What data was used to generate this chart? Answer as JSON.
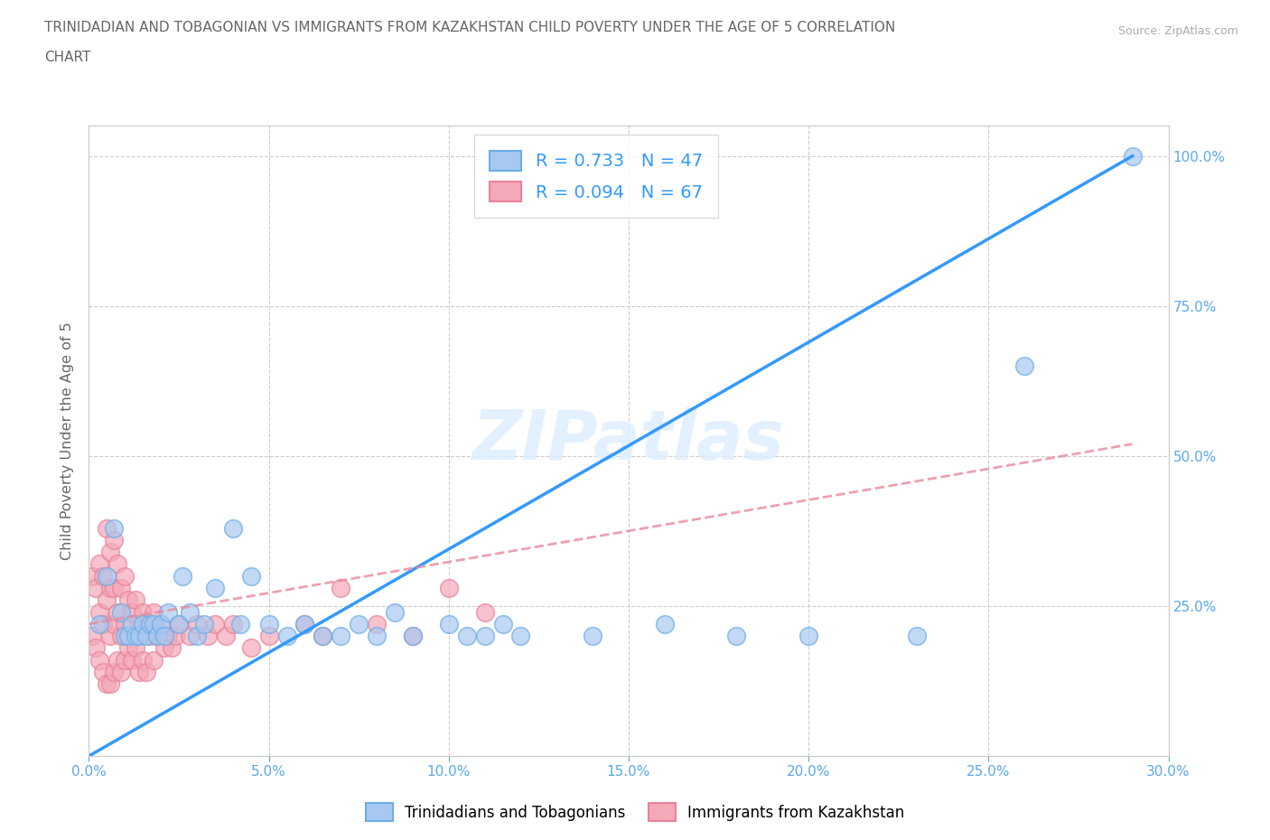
{
  "title_line1": "TRINIDADIAN AND TOBAGONIAN VS IMMIGRANTS FROM KAZAKHSTAN CHILD POVERTY UNDER THE AGE OF 5 CORRELATION",
  "title_line2": "CHART",
  "source": "Source: ZipAtlas.com",
  "ylabel": "Child Poverty Under the Age of 5",
  "xlim": [
    0.0,
    0.3
  ],
  "ylim": [
    0.0,
    1.05
  ],
  "xtick_labels": [
    "0.0%",
    "5.0%",
    "10.0%",
    "15.0%",
    "20.0%",
    "25.0%",
    "30.0%"
  ],
  "xtick_values": [
    0.0,
    0.05,
    0.1,
    0.15,
    0.2,
    0.25,
    0.3
  ],
  "ytick_labels": [
    "",
    "",
    "",
    "",
    ""
  ],
  "ytick_values": [
    0.0,
    0.25,
    0.5,
    0.75,
    1.0
  ],
  "right_ytick_labels": [
    "25.0%",
    "50.0%",
    "75.0%",
    "100.0%"
  ],
  "right_ytick_values": [
    0.25,
    0.5,
    0.75,
    1.0
  ],
  "R_blue": 0.733,
  "N_blue": 47,
  "R_pink": 0.094,
  "N_pink": 67,
  "blue_color": "#a8c8f0",
  "pink_color": "#f4a8b8",
  "blue_edge_color": "#6aaee8",
  "pink_edge_color": "#e8829a",
  "trend_line_blue_color": "#3399ff",
  "trend_line_pink_color": "#e88a9a",
  "watermark": "ZIPatlas",
  "legend_blue_label": "Trinidadians and Tobagonians",
  "legend_pink_label": "Immigrants from Kazakhstan",
  "blue_scatter_x": [
    0.003,
    0.005,
    0.007,
    0.009,
    0.01,
    0.011,
    0.012,
    0.013,
    0.014,
    0.015,
    0.016,
    0.017,
    0.018,
    0.019,
    0.02,
    0.021,
    0.022,
    0.025,
    0.026,
    0.028,
    0.03,
    0.032,
    0.035,
    0.04,
    0.042,
    0.045,
    0.05,
    0.055,
    0.06,
    0.065,
    0.07,
    0.075,
    0.08,
    0.085,
    0.09,
    0.1,
    0.105,
    0.11,
    0.115,
    0.12,
    0.14,
    0.16,
    0.18,
    0.2,
    0.23,
    0.26,
    0.29
  ],
  "blue_scatter_y": [
    0.22,
    0.3,
    0.38,
    0.24,
    0.2,
    0.2,
    0.22,
    0.2,
    0.2,
    0.22,
    0.2,
    0.22,
    0.22,
    0.2,
    0.22,
    0.2,
    0.24,
    0.22,
    0.3,
    0.24,
    0.2,
    0.22,
    0.28,
    0.38,
    0.22,
    0.3,
    0.22,
    0.2,
    0.22,
    0.2,
    0.2,
    0.22,
    0.2,
    0.24,
    0.2,
    0.22,
    0.2,
    0.2,
    0.22,
    0.2,
    0.2,
    0.22,
    0.2,
    0.2,
    0.2,
    0.65,
    1.0
  ],
  "pink_scatter_x": [
    0.001,
    0.001,
    0.002,
    0.002,
    0.003,
    0.003,
    0.003,
    0.004,
    0.004,
    0.004,
    0.005,
    0.005,
    0.005,
    0.006,
    0.006,
    0.006,
    0.006,
    0.007,
    0.007,
    0.007,
    0.007,
    0.008,
    0.008,
    0.008,
    0.009,
    0.009,
    0.009,
    0.01,
    0.01,
    0.01,
    0.011,
    0.011,
    0.012,
    0.012,
    0.013,
    0.013,
    0.014,
    0.014,
    0.015,
    0.015,
    0.016,
    0.016,
    0.017,
    0.018,
    0.018,
    0.019,
    0.02,
    0.021,
    0.022,
    0.023,
    0.024,
    0.025,
    0.028,
    0.03,
    0.033,
    0.035,
    0.038,
    0.04,
    0.045,
    0.05,
    0.06,
    0.065,
    0.07,
    0.08,
    0.09,
    0.1,
    0.11
  ],
  "pink_scatter_y": [
    0.3,
    0.2,
    0.28,
    0.18,
    0.32,
    0.24,
    0.16,
    0.3,
    0.22,
    0.14,
    0.38,
    0.26,
    0.12,
    0.34,
    0.28,
    0.2,
    0.12,
    0.36,
    0.28,
    0.22,
    0.14,
    0.32,
    0.24,
    0.16,
    0.28,
    0.2,
    0.14,
    0.3,
    0.22,
    0.16,
    0.26,
    0.18,
    0.24,
    0.16,
    0.26,
    0.18,
    0.22,
    0.14,
    0.24,
    0.16,
    0.22,
    0.14,
    0.2,
    0.24,
    0.16,
    0.2,
    0.22,
    0.18,
    0.2,
    0.18,
    0.2,
    0.22,
    0.2,
    0.22,
    0.2,
    0.22,
    0.2,
    0.22,
    0.18,
    0.2,
    0.22,
    0.2,
    0.28,
    0.22,
    0.2,
    0.28,
    0.24
  ],
  "background_color": "#ffffff",
  "grid_color": "#cccccc",
  "title_color": "#666666",
  "axis_label_color": "#666666"
}
